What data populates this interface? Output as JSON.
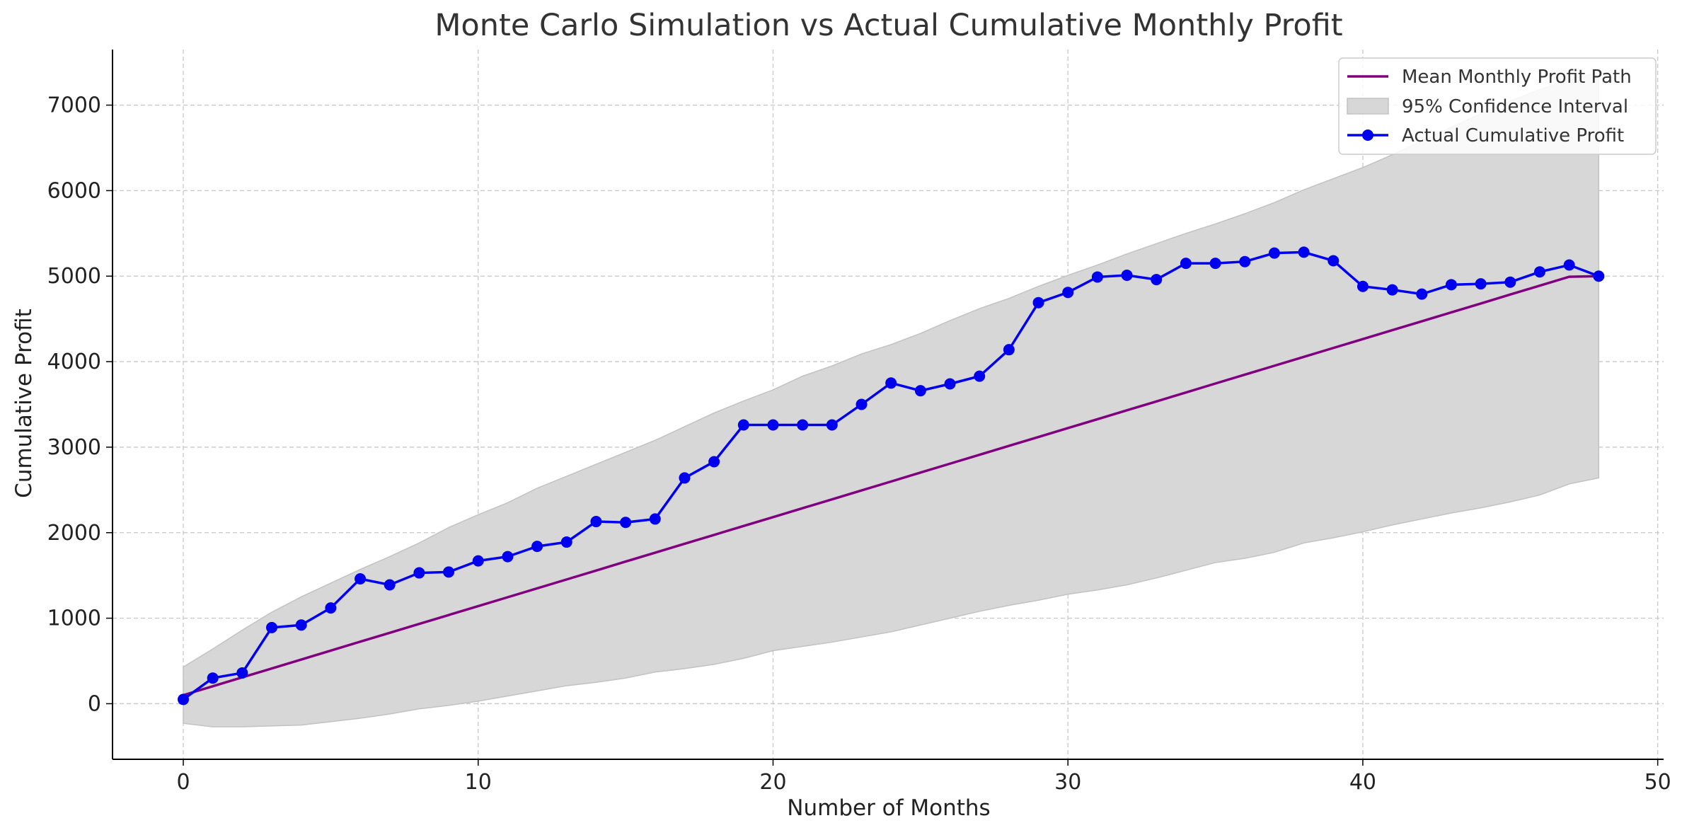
{
  "chart_data": {
    "type": "line",
    "title": "Monte Carlo Simulation vs Actual Cumulative Monthly Profit",
    "xlabel": "Number of Months",
    "ylabel": "Cumulative Profit",
    "xlim": [
      -2.4,
      50.2
    ],
    "ylim": [
      -650,
      7650
    ],
    "xticks": [
      0,
      10,
      20,
      30,
      40,
      50
    ],
    "yticks": [
      0,
      1000,
      2000,
      3000,
      4000,
      5000,
      6000,
      7000
    ],
    "grid": true,
    "legend_position": "top-right",
    "legend": {
      "mean": "Mean Monthly Profit Path",
      "ci": "95% Confidence Interval",
      "actual": "Actual Cumulative Profit"
    },
    "colors": {
      "mean": "#800080",
      "ci_fill": "#d7d7d7",
      "ci_edge": "#c2c2c2",
      "actual": "#0000ee",
      "grid": "#c8c8c8",
      "axis": "#000000",
      "text": "#222222"
    },
    "x": [
      0,
      1,
      2,
      3,
      4,
      5,
      6,
      7,
      8,
      9,
      10,
      11,
      12,
      13,
      14,
      15,
      16,
      17,
      18,
      19,
      20,
      21,
      22,
      23,
      24,
      25,
      26,
      27,
      28,
      29,
      30,
      31,
      32,
      33,
      34,
      35,
      36,
      37,
      38,
      39,
      40,
      41,
      42,
      43,
      44,
      45,
      46,
      47,
      48
    ],
    "series": [
      {
        "name": "Mean Monthly Profit Path",
        "kind": "line",
        "values": [
          100,
          204,
          308,
          412,
          516,
          621,
          725,
          829,
          933,
          1037,
          1141,
          1245,
          1349,
          1453,
          1557,
          1662,
          1766,
          1870,
          1974,
          2078,
          2182,
          2286,
          2390,
          2494,
          2598,
          2703,
          2807,
          2911,
          3015,
          3119,
          3223,
          3327,
          3431,
          3535,
          3639,
          3744,
          3848,
          3952,
          4056,
          4160,
          4264,
          4368,
          4472,
          4576,
          4680,
          4785,
          4889,
          4993,
          5000
        ]
      },
      {
        "name": "95% Confidence Interval",
        "kind": "band",
        "lower": [
          -230,
          -270,
          -270,
          -260,
          -250,
          -210,
          -170,
          -120,
          -60,
          -20,
          30,
          90,
          150,
          210,
          250,
          300,
          370,
          410,
          460,
          530,
          620,
          670,
          720,
          780,
          840,
          920,
          1000,
          1080,
          1150,
          1210,
          1280,
          1330,
          1390,
          1470,
          1560,
          1650,
          1700,
          1770,
          1880,
          1940,
          2010,
          2090,
          2160,
          2230,
          2290,
          2360,
          2440,
          2570,
          2640
        ],
        "upper": [
          430,
          640,
          860,
          1070,
          1250,
          1410,
          1570,
          1720,
          1880,
          2060,
          2210,
          2350,
          2520,
          2660,
          2800,
          2940,
          3080,
          3240,
          3400,
          3540,
          3670,
          3830,
          3950,
          4090,
          4200,
          4330,
          4480,
          4620,
          4740,
          4880,
          5010,
          5130,
          5260,
          5380,
          5500,
          5610,
          5730,
          5860,
          6010,
          6140,
          6270,
          6420,
          6580,
          6740,
          6900,
          7050,
          7180,
          7300,
          7380
        ]
      },
      {
        "name": "Actual Cumulative Profit",
        "kind": "line-marker",
        "values": [
          50,
          300,
          360,
          890,
          920,
          1120,
          1460,
          1390,
          1530,
          1540,
          1670,
          1720,
          1840,
          1890,
          2130,
          2120,
          2160,
          2640,
          2830,
          3260,
          3260,
          3260,
          3260,
          3500,
          3750,
          3660,
          3740,
          3830,
          4140,
          4690,
          4810,
          4990,
          5010,
          4960,
          5150,
          5150,
          5170,
          5270,
          5280,
          5180,
          4880,
          4840,
          4790,
          4900,
          4910,
          4930,
          5050,
          5130,
          5000
        ]
      }
    ]
  }
}
